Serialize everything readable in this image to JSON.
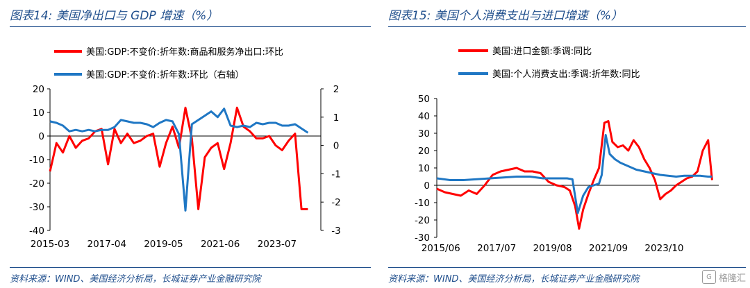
{
  "left": {
    "title": "图表14: 美国净出口与 GDP 增速（%）",
    "source": "资料来源：WIND、美国经济分析局，长城证券产业金融研究院",
    "chart_data": {
      "type": "line",
      "legend": [
        {
          "name": "美国:GDP:不变价:折年数:商品和服务净出口:环比",
          "color": "#ff0000"
        },
        {
          "name": "美国:GDP:不变价:折年数:环比（右轴）",
          "color": "#1f77c4"
        }
      ],
      "x_ticks": [
        "2015-03",
        "2017-04",
        "2019-05",
        "2021-06",
        "2023-07"
      ],
      "x_range": [
        2015.0,
        2025.5
      ],
      "y_left": {
        "range": [
          -40,
          20
        ],
        "ticks": [
          20,
          10,
          0,
          -10,
          -20,
          -30,
          -40
        ]
      },
      "y_right": {
        "range": [
          -3,
          2
        ],
        "ticks": [
          2,
          1,
          0,
          -1,
          -2,
          -3
        ]
      },
      "series": [
        {
          "name": "美国:GDP:不变价:折年数:商品和服务净出口:环比",
          "color": "#ff0000",
          "axis": "left",
          "x": [
            2015.0,
            2015.25,
            2015.5,
            2015.75,
            2016.0,
            2016.25,
            2016.5,
            2016.75,
            2017.0,
            2017.25,
            2017.5,
            2017.75,
            2018.0,
            2018.25,
            2018.5,
            2018.75,
            2019.0,
            2019.25,
            2019.5,
            2019.75,
            2020.0,
            2020.25,
            2020.5,
            2020.75,
            2021.0,
            2021.25,
            2021.5,
            2021.75,
            2022.0,
            2022.25,
            2022.5,
            2022.75,
            2023.0,
            2023.25,
            2023.5,
            2023.75,
            2024.0,
            2024.25,
            2024.5,
            2024.75,
            2025.0
          ],
          "values": [
            -15,
            -3,
            -7,
            0,
            -5,
            -2,
            -1,
            2,
            3,
            -12,
            3,
            -3,
            1,
            -3,
            -2,
            0,
            1,
            -13,
            -3,
            4,
            -5,
            12,
            -1,
            -31,
            -9,
            -5,
            -3,
            -14,
            -3,
            12,
            4,
            2,
            -1,
            -1,
            0,
            -4,
            -6,
            -2,
            1,
            -31,
            -31
          ],
          "note_last": "series ends near -31"
        },
        {
          "name": "美国:GDP:不变价:折年数:环比（右轴）",
          "color": "#1f77c4",
          "axis": "right",
          "x": [
            2015.0,
            2015.25,
            2015.5,
            2015.75,
            2016.0,
            2016.25,
            2016.5,
            2016.75,
            2017.0,
            2017.25,
            2017.5,
            2017.75,
            2018.0,
            2018.25,
            2018.5,
            2018.75,
            2019.0,
            2019.25,
            2019.5,
            2019.75,
            2020.0,
            2020.25,
            2020.5,
            2020.75,
            2021.0,
            2021.25,
            2021.5,
            2021.75,
            2022.0,
            2022.25,
            2022.5,
            2022.75,
            2023.0,
            2023.25,
            2023.5,
            2023.75,
            2024.0,
            2024.25,
            2024.5,
            2024.75,
            2025.0
          ],
          "values": [
            0.85,
            0.8,
            0.7,
            0.5,
            0.55,
            0.5,
            0.55,
            0.5,
            0.55,
            0.55,
            0.65,
            0.9,
            0.85,
            0.8,
            0.8,
            0.75,
            0.65,
            0.8,
            0.9,
            0.85,
            0.4,
            -2.3,
            0.75,
            0.9,
            1.05,
            1.2,
            1.0,
            1.3,
            0.7,
            0.65,
            0.7,
            0.65,
            0.8,
            0.75,
            0.8,
            0.8,
            0.7,
            0.7,
            0.75,
            0.6,
            0.45
          ]
        }
      ]
    }
  },
  "right": {
    "title": "图表15: 美国个人消费支出与进口增速（%）",
    "source": "资料来源：WIND、美国经济分析局，长城证券产业金融研究院",
    "chart_data": {
      "type": "line",
      "legend": [
        {
          "name": "美国:进口金额:季调:同比",
          "color": "#ff0000"
        },
        {
          "name": "美国:个人消费支出:季调:折年数:同比",
          "color": "#1f77c4"
        }
      ],
      "x_ticks": [
        "2015/06",
        "2017/07",
        "2019/08",
        "2021/09",
        "2023/10"
      ],
      "x_range": [
        2015.0,
        2025.6
      ],
      "y": {
        "range": [
          -30,
          50
        ],
        "ticks": [
          50,
          40,
          30,
          20,
          10,
          0,
          -10,
          -20,
          -30
        ]
      },
      "series": [
        {
          "name": "美国:进口金额:季调:同比",
          "color": "#ff0000",
          "x": [
            2015.0,
            2015.3,
            2015.6,
            2015.9,
            2016.2,
            2016.5,
            2016.8,
            2017.1,
            2017.4,
            2017.7,
            2018.0,
            2018.3,
            2018.6,
            2018.9,
            2019.2,
            2019.5,
            2019.8,
            2020.0,
            2020.2,
            2020.35,
            2020.5,
            2020.7,
            2020.9,
            2021.1,
            2021.3,
            2021.45,
            2021.6,
            2021.8,
            2022.0,
            2022.2,
            2022.4,
            2022.6,
            2022.8,
            2023.0,
            2023.2,
            2023.4,
            2023.6,
            2023.8,
            2024.0,
            2024.2,
            2024.4,
            2024.6,
            2024.8,
            2025.0,
            2025.2,
            2025.35
          ],
          "values": [
            -2,
            -4,
            -5,
            -6,
            -3,
            -5,
            0,
            6,
            8,
            9,
            10,
            8,
            8,
            7,
            2,
            0,
            -1,
            -3,
            -12,
            -25,
            -14,
            -5,
            3,
            10,
            36,
            37,
            25,
            22,
            23,
            20,
            26,
            22,
            15,
            10,
            3,
            -8,
            -5,
            -3,
            0,
            2,
            4,
            5,
            8,
            20,
            26,
            3
          ]
        },
        {
          "name": "美国:个人消费支出:季调:折年数:同比",
          "color": "#1f77c4",
          "x": [
            2015.0,
            2015.5,
            2016.0,
            2016.5,
            2017.0,
            2017.5,
            2018.0,
            2018.5,
            2019.0,
            2019.5,
            2019.9,
            2020.1,
            2020.3,
            2020.5,
            2020.7,
            2020.9,
            2021.1,
            2021.2,
            2021.35,
            2021.5,
            2021.7,
            2021.9,
            2022.2,
            2022.5,
            2022.8,
            2023.1,
            2023.4,
            2023.7,
            2024.0,
            2024.3,
            2024.6,
            2024.9,
            2025.2,
            2025.35
          ],
          "values": [
            4,
            3,
            3,
            3.5,
            4,
            4.5,
            5,
            5,
            4,
            4,
            4,
            3.5,
            -16,
            -6,
            -1,
            0,
            1,
            6,
            29,
            18,
            15,
            13,
            11,
            9,
            8,
            7,
            6,
            5.5,
            5,
            5.5,
            5.5,
            5.5,
            5,
            5
          ]
        }
      ]
    }
  },
  "watermark": {
    "text": "格隆汇",
    "logo_glyph": "G"
  }
}
